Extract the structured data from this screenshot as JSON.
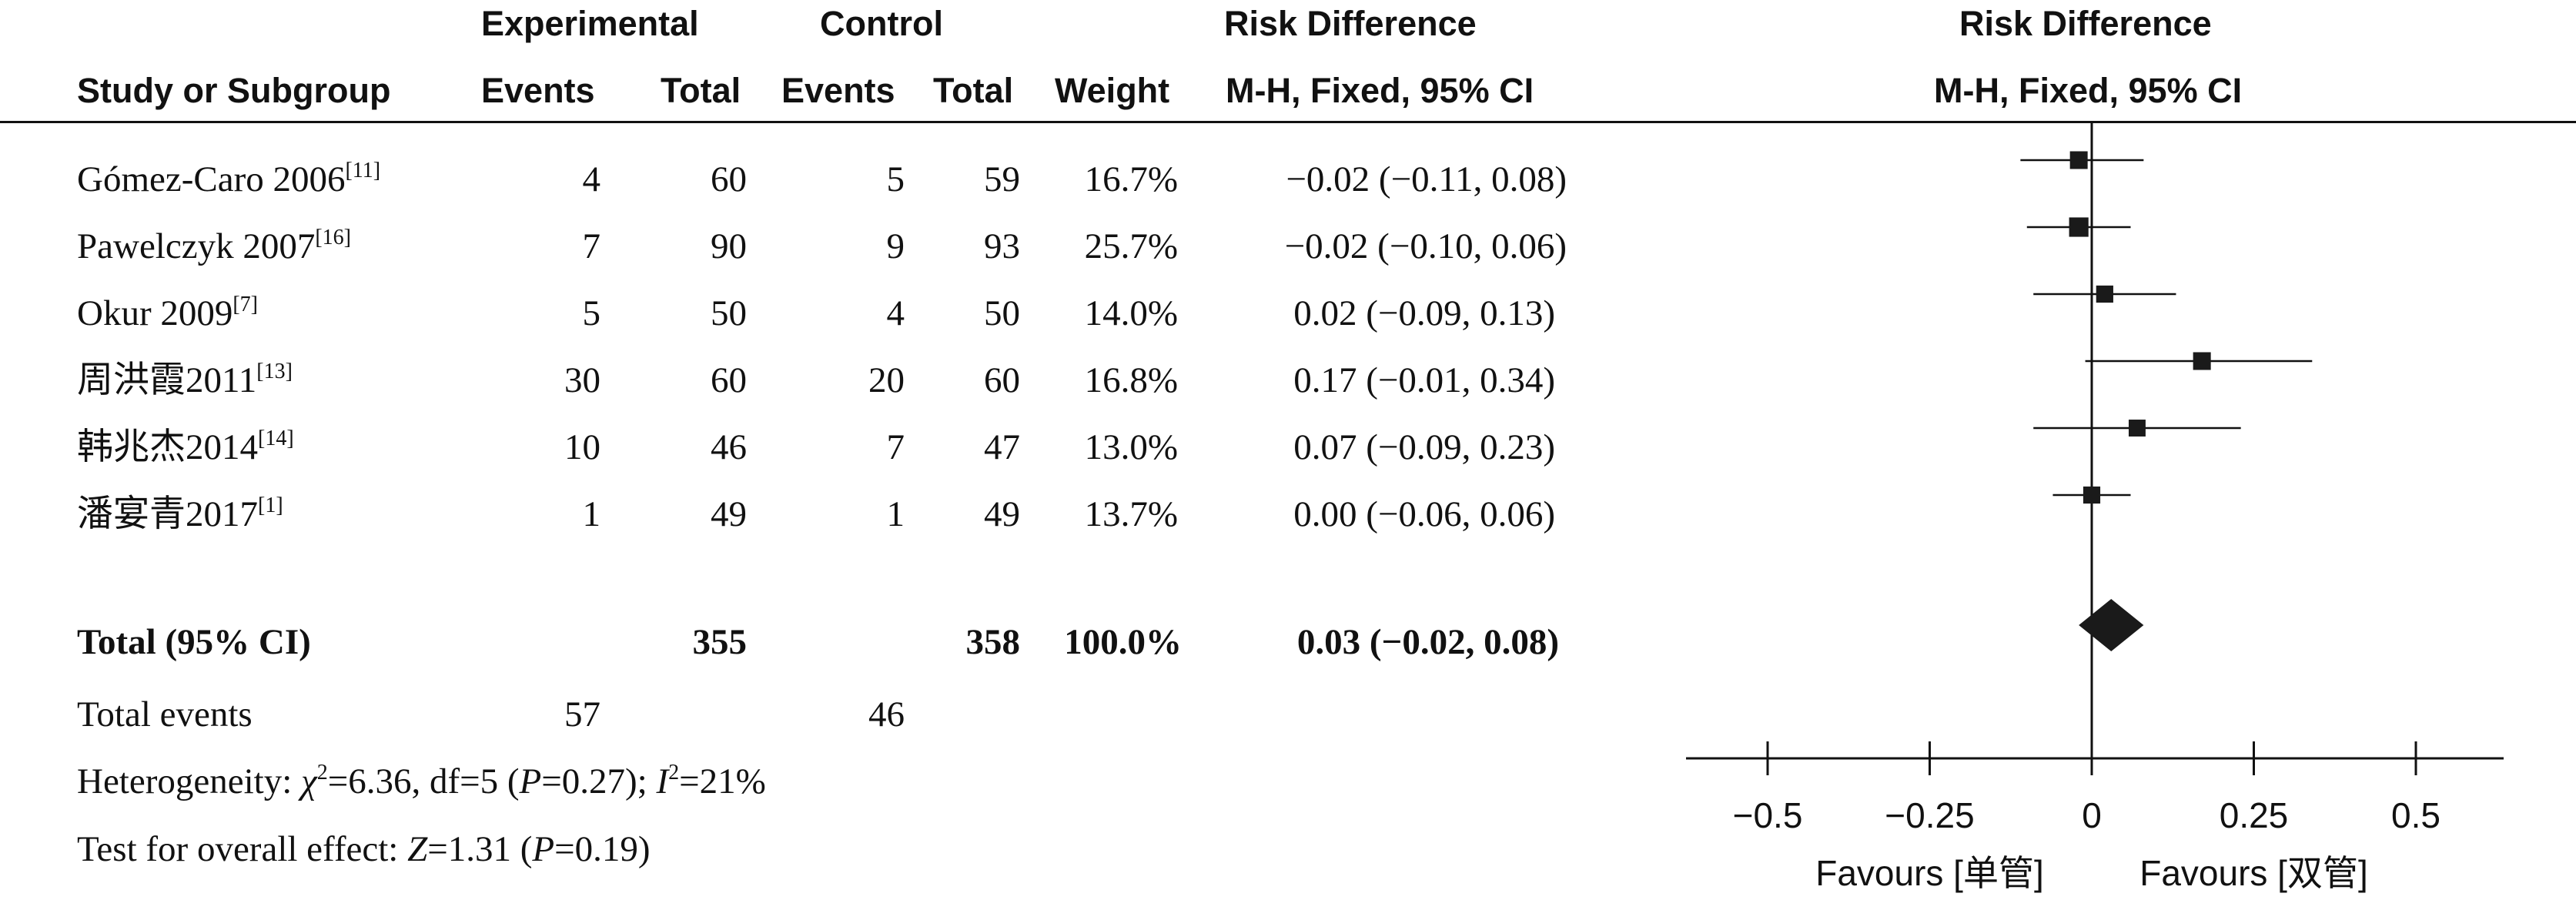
{
  "headers": {
    "group_experimental": "Experimental",
    "group_control": "Control",
    "risk_difference_left": "Risk Difference",
    "risk_difference_right": "Risk Difference",
    "study": "Study or Subgroup",
    "exp_events": "Events",
    "exp_total": "Total",
    "ctl_events": "Events",
    "ctl_total": "Total",
    "weight": "Weight",
    "method_left": "M-H, Fixed, 95% CI",
    "method_right": "M-H, Fixed, 95% CI"
  },
  "studies": [
    {
      "name": "Gómez-Caro 2006",
      "ref": "[11]",
      "exp_events": "4",
      "exp_total": "60",
      "ctl_events": "5",
      "ctl_total": "59",
      "weight": "16.7%",
      "ci_text": "−0.02 (−0.11, 0.08)"
    },
    {
      "name": "Pawelczyk 2007",
      "ref": "[16]",
      "exp_events": "7",
      "exp_total": "90",
      "ctl_events": "9",
      "ctl_total": "93",
      "weight": "25.7%",
      "ci_text": "−0.02 (−0.10, 0.06)"
    },
    {
      "name": "Okur 2009",
      "ref": "[7]",
      "exp_events": "5",
      "exp_total": "50",
      "ctl_events": "4",
      "ctl_total": "50",
      "weight": "14.0%",
      "ci_text": "0.02 (−0.09, 0.13)"
    },
    {
      "name": "周洪霞2011",
      "ref": "[13]",
      "exp_events": "30",
      "exp_total": "60",
      "ctl_events": "20",
      "ctl_total": "60",
      "weight": "16.8%",
      "ci_text": "0.17 (−0.01, 0.34)"
    },
    {
      "name": "韩兆杰2014",
      "ref": "[14]",
      "exp_events": "10",
      "exp_total": "46",
      "ctl_events": "7",
      "ctl_total": "47",
      "weight": "13.0%",
      "ci_text": "0.07 (−0.09, 0.23)"
    },
    {
      "name": "潘宴青2017",
      "ref": "[1]",
      "exp_events": "1",
      "exp_total": "49",
      "ctl_events": "1",
      "ctl_total": "49",
      "weight": "13.7%",
      "ci_text": "0.00 (−0.06, 0.06)"
    }
  ],
  "total": {
    "label": "Total (95% CI)",
    "exp_total": "355",
    "ctl_total": "358",
    "weight": "100.0%",
    "ci_text": "0.03 (−0.02, 0.08)"
  },
  "total_events": {
    "label": "Total events",
    "exp": "57",
    "ctl": "46"
  },
  "heterogeneity": {
    "prefix": "Heterogeneity: ",
    "chi": "χ",
    "chi_sup": "2",
    "chi_value": "=6.36, df=5 (",
    "p": "P",
    "p_value": "=0.27); ",
    "i": "I",
    "i_sup": "2",
    "i_value": "=21%"
  },
  "overall_effect": {
    "prefix": "Test for overall effect: ",
    "z": "Z",
    "z_value": "=1.31 (",
    "p": "P",
    "p_value": "=0.19)"
  },
  "chart_data": {
    "type": "forest",
    "measure": "Risk Difference",
    "xlim": [
      -0.5,
      0.5
    ],
    "ticks": [
      -0.5,
      -0.25,
      0,
      0.25,
      0.5
    ],
    "tick_labels": [
      "−0.5",
      "−0.25",
      "0",
      "0.25",
      "0.5"
    ],
    "favours_left": "Favours [单管]",
    "favours_right": "Favours [双管]",
    "points": [
      {
        "estimate": -0.02,
        "lower": -0.11,
        "upper": 0.08,
        "weight": 16.7
      },
      {
        "estimate": -0.02,
        "lower": -0.1,
        "upper": 0.06,
        "weight": 25.7
      },
      {
        "estimate": 0.02,
        "lower": -0.09,
        "upper": 0.13,
        "weight": 14.0
      },
      {
        "estimate": 0.17,
        "lower": -0.01,
        "upper": 0.34,
        "weight": 16.8
      },
      {
        "estimate": 0.07,
        "lower": -0.09,
        "upper": 0.23,
        "weight": 13.0
      },
      {
        "estimate": 0.0,
        "lower": -0.06,
        "upper": 0.06,
        "weight": 13.7
      }
    ],
    "overall": {
      "estimate": 0.03,
      "lower": -0.02,
      "upper": 0.08
    }
  }
}
